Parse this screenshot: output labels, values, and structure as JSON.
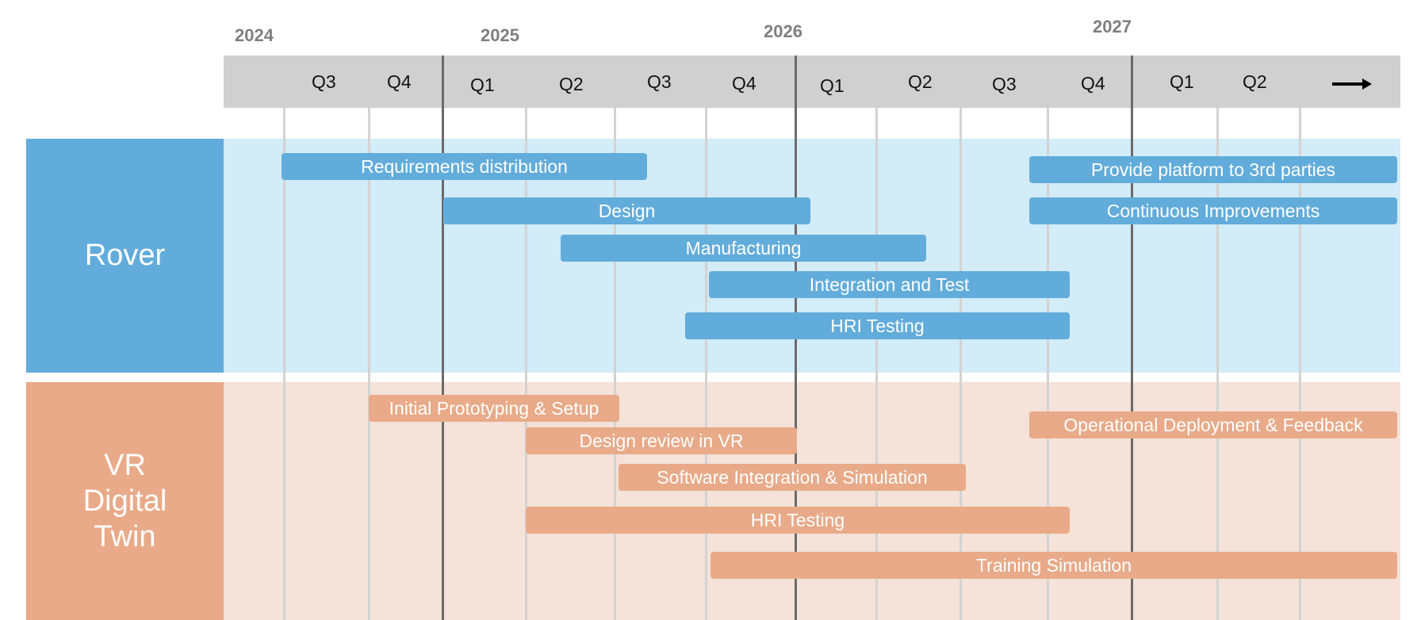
{
  "colors": {
    "header_band": "#d0d0d0",
    "year_text": "#7f7f7f",
    "rover": "#62acdb",
    "rover_bg": "#d2ecf8",
    "vr": "#e8aa88",
    "vr_bg": "#f5e2d8",
    "minor_line": "#d3d3d3",
    "major_line": "#6b6b6b"
  },
  "timeline": {
    "years": [
      "2024",
      "2025",
      "2026",
      "2027"
    ],
    "quarters": [
      "Q3",
      "Q4",
      "Q1",
      "Q2",
      "Q3",
      "Q4",
      "Q1",
      "Q2",
      "Q3",
      "Q4",
      "Q1",
      "Q2"
    ],
    "continues_icon": "right-arrow-icon"
  },
  "lanes": [
    {
      "id": "rover",
      "label": "Rover",
      "color": "#62acdb",
      "bg": "#d2ecf8",
      "tasks": [
        {
          "label": "Requirements distribution",
          "start": "2024 Q3",
          "end": "2025 Q3"
        },
        {
          "label": "Design",
          "start": "2025 Q1",
          "end": "2025 Q4"
        },
        {
          "label": "Manufacturing",
          "start": "2025 Q2",
          "end": "2026 Q2"
        },
        {
          "label": "Integration and Test",
          "start": "2025 Q4",
          "end": "2026 Q4"
        },
        {
          "label": "HRI Testing",
          "start": "2025 Q3",
          "end": "2026 Q4"
        },
        {
          "label": "Provide platform to 3rd parties",
          "start": "2026 Q3",
          "end": "2027 Q2+"
        },
        {
          "label": "Continuous Improvements",
          "start": "2026 Q3",
          "end": "2027 Q2+"
        }
      ]
    },
    {
      "id": "vr",
      "label": "VR\nDigital\nTwin",
      "color": "#e8aa88",
      "bg": "#f5e2d8",
      "tasks": [
        {
          "label": "Initial Prototyping & Setup",
          "start": "2024 Q4",
          "end": "2025 Q3"
        },
        {
          "label": "Design review in VR",
          "start": "2025 Q2",
          "end": "2025 Q4"
        },
        {
          "label": "Software Integration & Simulation",
          "start": "2025 Q3",
          "end": "2026 Q3"
        },
        {
          "label": "HRI Testing",
          "start": "2025 Q2",
          "end": "2026 Q4"
        },
        {
          "label": "Training Simulation",
          "start": "2025 Q4",
          "end": "2027 Q2+"
        },
        {
          "label": "Operational Deployment & Feedback",
          "start": "2026 Q3",
          "end": "2027 Q2+"
        }
      ]
    }
  ]
}
